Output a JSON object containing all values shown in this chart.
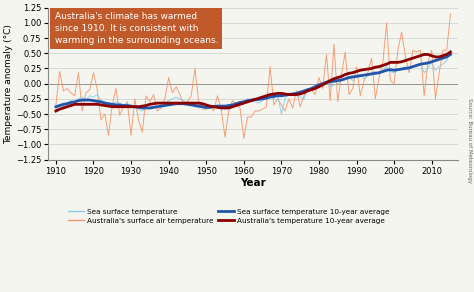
{
  "years": [
    1910,
    1911,
    1912,
    1913,
    1914,
    1915,
    1916,
    1917,
    1918,
    1919,
    1920,
    1921,
    1922,
    1923,
    1924,
    1925,
    1926,
    1927,
    1928,
    1929,
    1930,
    1931,
    1932,
    1933,
    1934,
    1935,
    1936,
    1937,
    1938,
    1939,
    1940,
    1941,
    1942,
    1943,
    1944,
    1945,
    1946,
    1947,
    1948,
    1949,
    1950,
    1951,
    1952,
    1953,
    1954,
    1955,
    1956,
    1957,
    1958,
    1959,
    1960,
    1961,
    1962,
    1963,
    1964,
    1965,
    1966,
    1967,
    1968,
    1969,
    1970,
    1971,
    1972,
    1973,
    1974,
    1975,
    1976,
    1977,
    1978,
    1979,
    1980,
    1981,
    1982,
    1983,
    1984,
    1985,
    1986,
    1987,
    1988,
    1989,
    1990,
    1991,
    1992,
    1993,
    1994,
    1995,
    1996,
    1997,
    1998,
    1999,
    2000,
    2001,
    2002,
    2003,
    2004,
    2005,
    2006,
    2007,
    2008,
    2009,
    2010,
    2011,
    2012,
    2013,
    2014,
    2015
  ],
  "sea_surface": [
    -0.42,
    -0.35,
    -0.38,
    -0.32,
    -0.28,
    -0.3,
    -0.25,
    -0.22,
    -0.28,
    -0.2,
    -0.22,
    -0.18,
    -0.28,
    -0.3,
    -0.32,
    -0.35,
    -0.3,
    -0.32,
    -0.35,
    -0.32,
    -0.38,
    -0.4,
    -0.42,
    -0.45,
    -0.38,
    -0.42,
    -0.4,
    -0.38,
    -0.35,
    -0.32,
    -0.28,
    -0.25,
    -0.22,
    -0.25,
    -0.28,
    -0.32,
    -0.35,
    -0.38,
    -0.4,
    -0.38,
    -0.42,
    -0.4,
    -0.38,
    -0.35,
    -0.4,
    -0.42,
    -0.38,
    -0.35,
    -0.32,
    -0.3,
    -0.28,
    -0.25,
    -0.28,
    -0.3,
    -0.32,
    -0.28,
    -0.2,
    -0.22,
    -0.25,
    -0.18,
    -0.5,
    -0.25,
    -0.15,
    -0.2,
    -0.18,
    -0.22,
    -0.25,
    -0.1,
    -0.08,
    -0.05,
    0.0,
    -0.02,
    0.05,
    -0.05,
    -0.02,
    0.0,
    0.05,
    0.08,
    0.1,
    0.05,
    0.12,
    0.15,
    0.08,
    0.12,
    0.18,
    0.2,
    0.15,
    0.22,
    0.28,
    0.2,
    0.18,
    0.22,
    0.25,
    0.28,
    0.22,
    0.3,
    0.28,
    0.32,
    0.18,
    0.25,
    0.35,
    0.22,
    0.28,
    0.32,
    0.38,
    0.55
  ],
  "sea_surface_avg": [
    -0.38,
    -0.36,
    -0.34,
    -0.33,
    -0.31,
    -0.3,
    -0.28,
    -0.27,
    -0.27,
    -0.27,
    -0.28,
    -0.29,
    -0.3,
    -0.32,
    -0.33,
    -0.34,
    -0.35,
    -0.35,
    -0.36,
    -0.36,
    -0.37,
    -0.38,
    -0.39,
    -0.4,
    -0.4,
    -0.4,
    -0.39,
    -0.38,
    -0.37,
    -0.36,
    -0.35,
    -0.34,
    -0.33,
    -0.33,
    -0.33,
    -0.34,
    -0.35,
    -0.36,
    -0.37,
    -0.38,
    -0.39,
    -0.39,
    -0.38,
    -0.37,
    -0.37,
    -0.37,
    -0.36,
    -0.35,
    -0.33,
    -0.31,
    -0.3,
    -0.28,
    -0.27,
    -0.26,
    -0.26,
    -0.25,
    -0.24,
    -0.22,
    -0.21,
    -0.2,
    -0.2,
    -0.19,
    -0.18,
    -0.17,
    -0.16,
    -0.14,
    -0.12,
    -0.1,
    -0.08,
    -0.05,
    -0.02,
    0.0,
    0.02,
    0.03,
    0.04,
    0.05,
    0.06,
    0.08,
    0.1,
    0.11,
    0.12,
    0.13,
    0.14,
    0.15,
    0.16,
    0.17,
    0.18,
    0.2,
    0.22,
    0.23,
    0.22,
    0.23,
    0.24,
    0.25,
    0.26,
    0.28,
    0.3,
    0.32,
    0.33,
    0.34,
    0.36,
    0.38,
    0.4,
    0.42,
    0.44,
    0.48
  ],
  "aus_air": [
    -0.35,
    0.2,
    -0.12,
    -0.08,
    -0.15,
    -0.2,
    0.18,
    -0.45,
    -0.15,
    -0.1,
    0.18,
    -0.1,
    -0.6,
    -0.5,
    -0.85,
    -0.35,
    -0.08,
    -0.52,
    -0.38,
    -0.3,
    -0.85,
    -0.25,
    -0.6,
    -0.8,
    -0.2,
    -0.3,
    -0.18,
    -0.45,
    -0.4,
    -0.25,
    0.1,
    -0.15,
    -0.05,
    -0.18,
    -0.35,
    -0.3,
    -0.2,
    0.25,
    -0.3,
    -0.42,
    -0.42,
    -0.35,
    -0.45,
    -0.2,
    -0.42,
    -0.88,
    -0.45,
    -0.28,
    -0.35,
    -0.4,
    -0.9,
    -0.55,
    -0.55,
    -0.45,
    -0.45,
    -0.42,
    -0.38,
    0.28,
    -0.35,
    -0.25,
    -0.35,
    -0.45,
    -0.25,
    -0.4,
    -0.12,
    -0.38,
    -0.2,
    -0.08,
    -0.1,
    -0.18,
    0.1,
    -0.08,
    0.48,
    -0.28,
    0.65,
    -0.3,
    0.15,
    0.52,
    -0.18,
    -0.08,
    0.28,
    -0.2,
    0.05,
    0.18,
    0.42,
    -0.25,
    0.1,
    0.35,
    1.0,
    0.05,
    0.0,
    0.55,
    0.85,
    0.45,
    0.18,
    0.55,
    0.52,
    0.55,
    -0.2,
    0.35,
    0.55,
    -0.25,
    0.18,
    0.55,
    0.55,
    1.15
  ],
  "aus_air_avg": [
    -0.45,
    -0.42,
    -0.4,
    -0.38,
    -0.36,
    -0.34,
    -0.34,
    -0.34,
    -0.34,
    -0.34,
    -0.34,
    -0.34,
    -0.35,
    -0.36,
    -0.37,
    -0.38,
    -0.38,
    -0.38,
    -0.38,
    -0.38,
    -0.38,
    -0.38,
    -0.38,
    -0.37,
    -0.36,
    -0.34,
    -0.33,
    -0.32,
    -0.32,
    -0.32,
    -0.32,
    -0.32,
    -0.32,
    -0.32,
    -0.32,
    -0.32,
    -0.32,
    -0.32,
    -0.32,
    -0.33,
    -0.35,
    -0.37,
    -0.38,
    -0.39,
    -0.4,
    -0.4,
    -0.4,
    -0.38,
    -0.36,
    -0.34,
    -0.32,
    -0.3,
    -0.28,
    -0.26,
    -0.24,
    -0.22,
    -0.2,
    -0.18,
    -0.17,
    -0.16,
    -0.16,
    -0.17,
    -0.18,
    -0.18,
    -0.18,
    -0.17,
    -0.15,
    -0.12,
    -0.1,
    -0.08,
    -0.05,
    -0.02,
    0.02,
    0.05,
    0.08,
    0.1,
    0.12,
    0.15,
    0.17,
    0.18,
    0.2,
    0.22,
    0.23,
    0.24,
    0.25,
    0.27,
    0.28,
    0.3,
    0.32,
    0.35,
    0.35,
    0.35,
    0.36,
    0.38,
    0.4,
    0.42,
    0.44,
    0.46,
    0.48,
    0.48,
    0.46,
    0.44,
    0.44,
    0.46,
    0.48,
    0.52
  ],
  "annotation_text": "Australia's climate has warmed\nsince 1910. It is consistent with\nwarming in the surrounding oceans.",
  "annotation_bg": "#C05A2A",
  "annotation_text_color": "#FFFFFF",
  "xlabel": "Year",
  "ylabel": "Temperature anomaly (°C)",
  "ylim": [
    -1.25,
    1.25
  ],
  "xlim": [
    1908,
    2017
  ],
  "yticks": [
    -1.25,
    -1.0,
    -0.75,
    -0.5,
    -0.25,
    0.0,
    0.25,
    0.5,
    0.75,
    1.0,
    1.25
  ],
  "xticks": [
    1910,
    1920,
    1930,
    1940,
    1950,
    1960,
    1970,
    1980,
    1990,
    2000,
    2010
  ],
  "color_sea_light": "#87CEEB",
  "color_sea_avg": "#2255AA",
  "color_aus_light": "#F4956A",
  "color_aus_avg": "#8B0000",
  "source_text": "Source: Bureau of Meteorology",
  "legend_items_col1": [
    {
      "label": "Sea surface temperature",
      "color": "#87CEEB",
      "lw": 1.0
    },
    {
      "label": "Sea surface temperature 10-year average",
      "color": "#2255AA",
      "lw": 2.0
    }
  ],
  "legend_items_col2": [
    {
      "label": "Australia's surface air temperature",
      "color": "#F4956A",
      "lw": 1.0
    },
    {
      "label": "Australia's temperature 10-year average",
      "color": "#8B0000",
      "lw": 2.0
    }
  ],
  "bg_color": "#F5F5F0"
}
